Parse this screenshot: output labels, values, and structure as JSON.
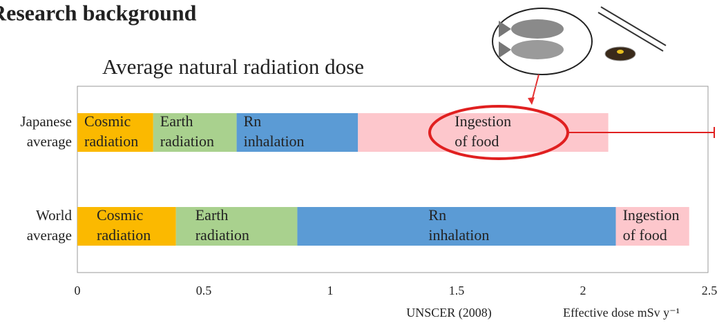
{
  "chart_data": {
    "type": "stacked-bar-horizontal",
    "title": "Research background",
    "subtitle": "Average natural radiation dose",
    "source": "UNSCER (2008)",
    "x_label": "Effective dose mSv y⁻¹",
    "categories": [
      "Japanese average",
      "World average"
    ],
    "series": [
      {
        "name": "Cosmic radiation",
        "color": "#fbb900",
        "values": [
          0.3,
          0.39
        ]
      },
      {
        "name": "Earth radiation",
        "color": "#a9d18e",
        "values": [
          0.33,
          0.48
        ]
      },
      {
        "name": "Rn inhalation",
        "color": "#5b9bd5",
        "values": [
          0.48,
          1.26
        ]
      },
      {
        "name": "Ingestion of food",
        "color": "#fdc7cc",
        "values": [
          0.99,
          0.29
        ]
      }
    ],
    "xlim": [
      0,
      2.5
    ],
    "xticks": [
      0,
      0.5,
      1,
      1.5,
      2,
      2.5
    ]
  }
}
